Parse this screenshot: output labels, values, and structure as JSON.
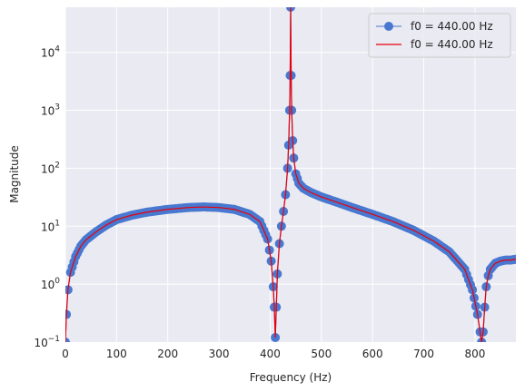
{
  "chart_data": {
    "type": "line",
    "title": "",
    "xlabel": "Frequency (Hz)",
    "ylabel": "Magnitude",
    "xlim": [
      0,
      880
    ],
    "ylim": [
      0.1,
      60000
    ],
    "yscale": "log",
    "grid": true,
    "legend_position": "top-right",
    "x_ticks": [
      0,
      100,
      200,
      300,
      400,
      500,
      600,
      700,
      800
    ],
    "y_ticks": [
      0.1,
      1,
      10,
      100,
      1000,
      10000
    ],
    "y_tick_labels": [
      {
        "base": "10",
        "exp": "−1"
      },
      {
        "base": "10",
        "exp": "0"
      },
      {
        "base": "10",
        "exp": "1"
      },
      {
        "base": "10",
        "exp": "2"
      },
      {
        "base": "10",
        "exp": "3"
      },
      {
        "base": "10",
        "exp": "4"
      }
    ],
    "series": [
      {
        "name": "f0 = 440.00 Hz",
        "style": "line-markers",
        "color": "#4878d0",
        "x": [
          0,
          2,
          5,
          10,
          20,
          30,
          40,
          60,
          80,
          100,
          130,
          160,
          200,
          240,
          270,
          300,
          330,
          360,
          380,
          395,
          402,
          406,
          408,
          410,
          412,
          414,
          418,
          422,
          426,
          430,
          434,
          436,
          438,
          439,
          440,
          441,
          442,
          444,
          446,
          450,
          456,
          465,
          480,
          500,
          530,
          560,
          600,
          640,
          680,
          720,
          750,
          780,
          795,
          805,
          810,
          813,
          816,
          819,
          822,
          826,
          830,
          840,
          850,
          860,
          870,
          880
        ],
        "values": [
          0.1,
          0.3,
          0.8,
          1.6,
          3.0,
          4.5,
          5.8,
          8.0,
          10.5,
          13.0,
          15.5,
          17.5,
          19.5,
          21.0,
          21.5,
          21.0,
          19.5,
          16.0,
          12.0,
          6.0,
          2.5,
          0.9,
          0.4,
          0.12,
          0.4,
          1.5,
          5.0,
          10.0,
          18.0,
          35.0,
          100.0,
          250.0,
          1000.0,
          4000.0,
          60000.0,
          4000.0,
          1000.0,
          300.0,
          150.0,
          80.0,
          55.0,
          45.0,
          38.0,
          32.0,
          26.0,
          21.0,
          16.0,
          12.0,
          8.5,
          5.5,
          3.6,
          1.8,
          0.8,
          0.3,
          0.15,
          0.1,
          0.15,
          0.4,
          0.9,
          1.4,
          1.8,
          2.3,
          2.5,
          2.6,
          2.6,
          2.7
        ]
      },
      {
        "name": "f0 = 440.00 Hz",
        "style": "line",
        "color": "#e8000b",
        "x": [
          0,
          2,
          5,
          10,
          20,
          30,
          40,
          60,
          80,
          100,
          130,
          160,
          200,
          240,
          270,
          300,
          330,
          360,
          380,
          395,
          402,
          406,
          408,
          410,
          412,
          414,
          418,
          422,
          426,
          430,
          434,
          436,
          438,
          439,
          440,
          441,
          442,
          444,
          446,
          450,
          456,
          465,
          480,
          500,
          530,
          560,
          600,
          640,
          680,
          720,
          750,
          780,
          795,
          805,
          810,
          813,
          816,
          819,
          822,
          826,
          830,
          840,
          850,
          860,
          870,
          880
        ],
        "values": [
          0.1,
          0.3,
          0.8,
          1.6,
          3.0,
          4.5,
          5.8,
          8.0,
          10.5,
          13.0,
          15.5,
          17.5,
          19.5,
          21.0,
          21.5,
          21.0,
          19.5,
          16.0,
          12.0,
          6.0,
          2.5,
          0.9,
          0.4,
          0.12,
          0.4,
          1.5,
          5.0,
          10.0,
          18.0,
          35.0,
          100.0,
          250.0,
          1000.0,
          4000.0,
          60000.0,
          4000.0,
          1000.0,
          300.0,
          150.0,
          80.0,
          55.0,
          45.0,
          38.0,
          32.0,
          26.0,
          21.0,
          16.0,
          12.0,
          8.5,
          5.5,
          3.6,
          1.8,
          0.8,
          0.3,
          0.15,
          0.1,
          0.15,
          0.4,
          0.9,
          1.4,
          1.8,
          2.3,
          2.5,
          2.6,
          2.6,
          2.7
        ]
      }
    ]
  }
}
